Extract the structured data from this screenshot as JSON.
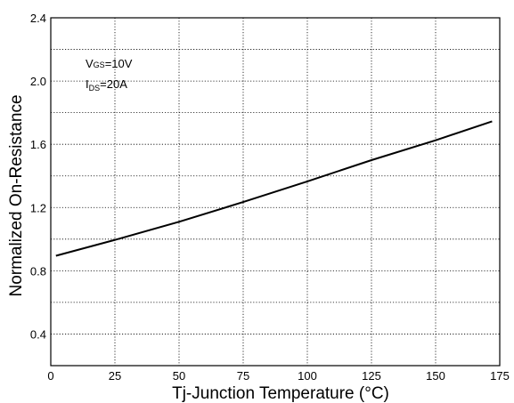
{
  "chart_data": {
    "type": "line",
    "title": "",
    "xlabel": "Tj-Junction Temperature (°C)",
    "ylabel": "Normalized On-Resistance",
    "xlim": [
      0,
      175
    ],
    "ylim": [
      0.2,
      2.4
    ],
    "x_ticks": [
      "0",
      "25",
      "50",
      "75",
      "100",
      "125",
      "150",
      "175"
    ],
    "y_ticks": [
      "0.4",
      "0.8",
      "1.2",
      "1.6",
      "2.0",
      "2.4"
    ],
    "grid": "dotted",
    "annotations": {
      "vgs_symbol": "V",
      "vgs_sub": "GS",
      "vgs_value": "=10V",
      "ids_symbol": "I",
      "ids_sub": "DS",
      "ids_value": "=20A"
    },
    "series": [
      {
        "x": [
          2,
          25,
          50,
          75,
          100,
          125,
          150,
          172
        ],
        "y": [
          0.895,
          0.995,
          1.11,
          1.235,
          1.365,
          1.5,
          1.625,
          1.745
        ]
      }
    ]
  }
}
